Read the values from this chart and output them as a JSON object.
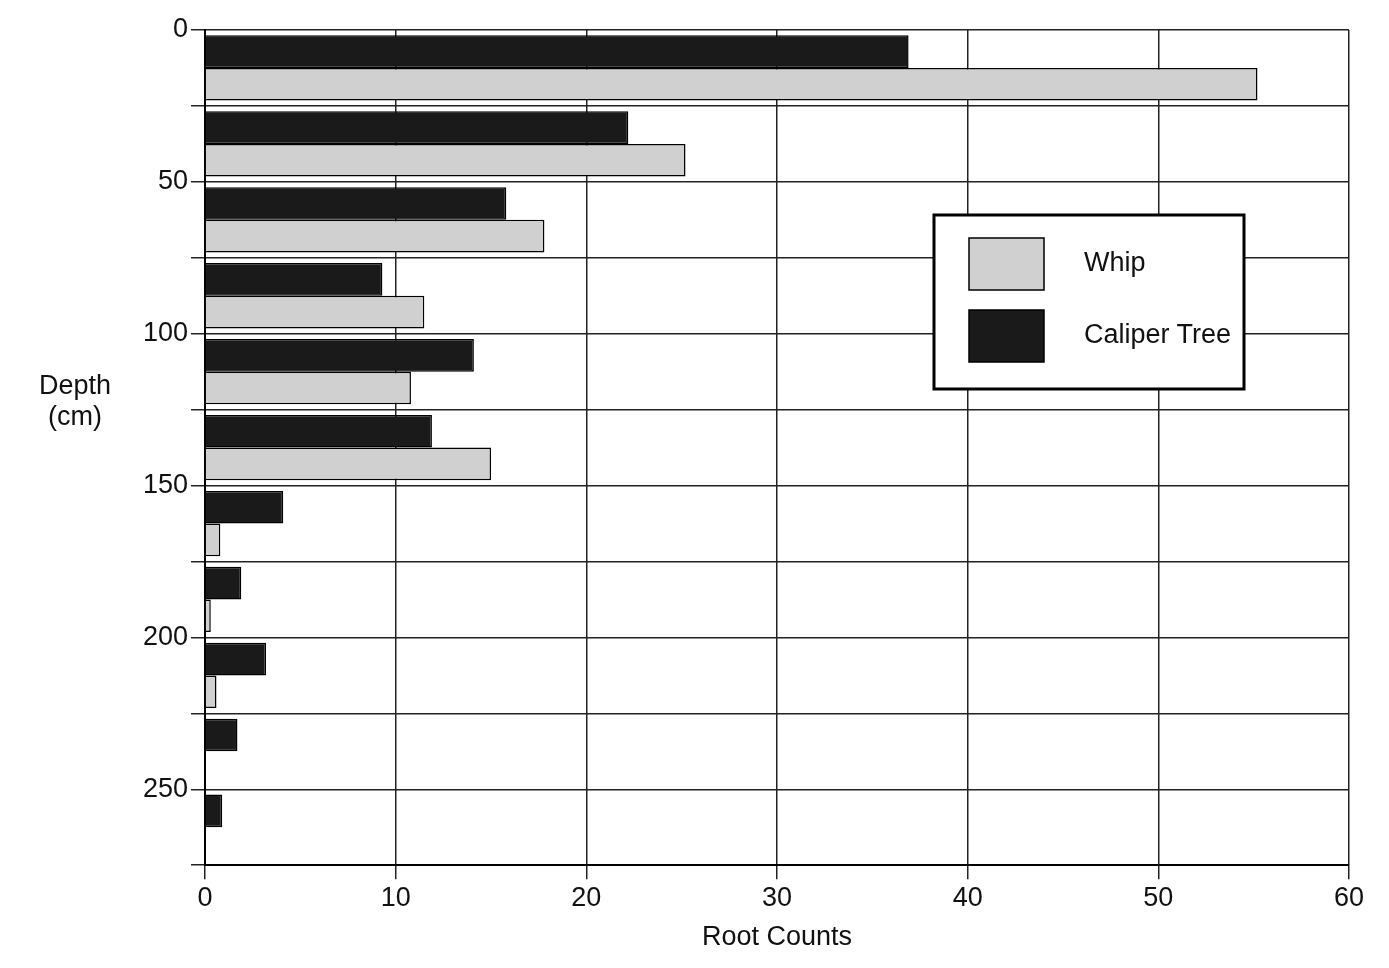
{
  "chart_data": {
    "type": "bar",
    "orientation": "horizontal",
    "xlabel": "Root Counts",
    "ylabel": "Depth (cm)",
    "x": [
      12.5,
      37.5,
      62.5,
      87.5,
      112.5,
      137.5,
      162.5,
      187.5,
      212.5,
      237.5,
      262.5
    ],
    "series": [
      {
        "name": "Whip",
        "color": "#d0d0d0",
        "values": [
          55.2,
          25.2,
          17.8,
          11.5,
          10.8,
          15.0,
          0.8,
          0.3,
          0.6,
          null,
          null
        ]
      },
      {
        "name": "Caliper Tree",
        "color": "#1a1a1a",
        "values": [
          36.9,
          22.2,
          15.8,
          9.3,
          14.1,
          11.9,
          4.1,
          1.9,
          3.2,
          1.7,
          0.9
        ]
      }
    ],
    "xlim": [
      0,
      60
    ],
    "xticks": [
      0,
      10,
      20,
      30,
      40,
      50,
      60
    ],
    "ylim": [
      275,
      0
    ],
    "yticks": [
      0,
      {
        "value": 25,
        "label": null
      },
      50,
      {
        "value": 75,
        "label": null
      },
      100,
      {
        "value": 125,
        "label": null
      },
      150,
      {
        "value": 175,
        "label": null
      },
      200,
      {
        "value": 225,
        "label": null
      },
      250,
      {
        "value": 275,
        "label": null
      }
    ],
    "grid": true,
    "legend": "top right"
  }
}
